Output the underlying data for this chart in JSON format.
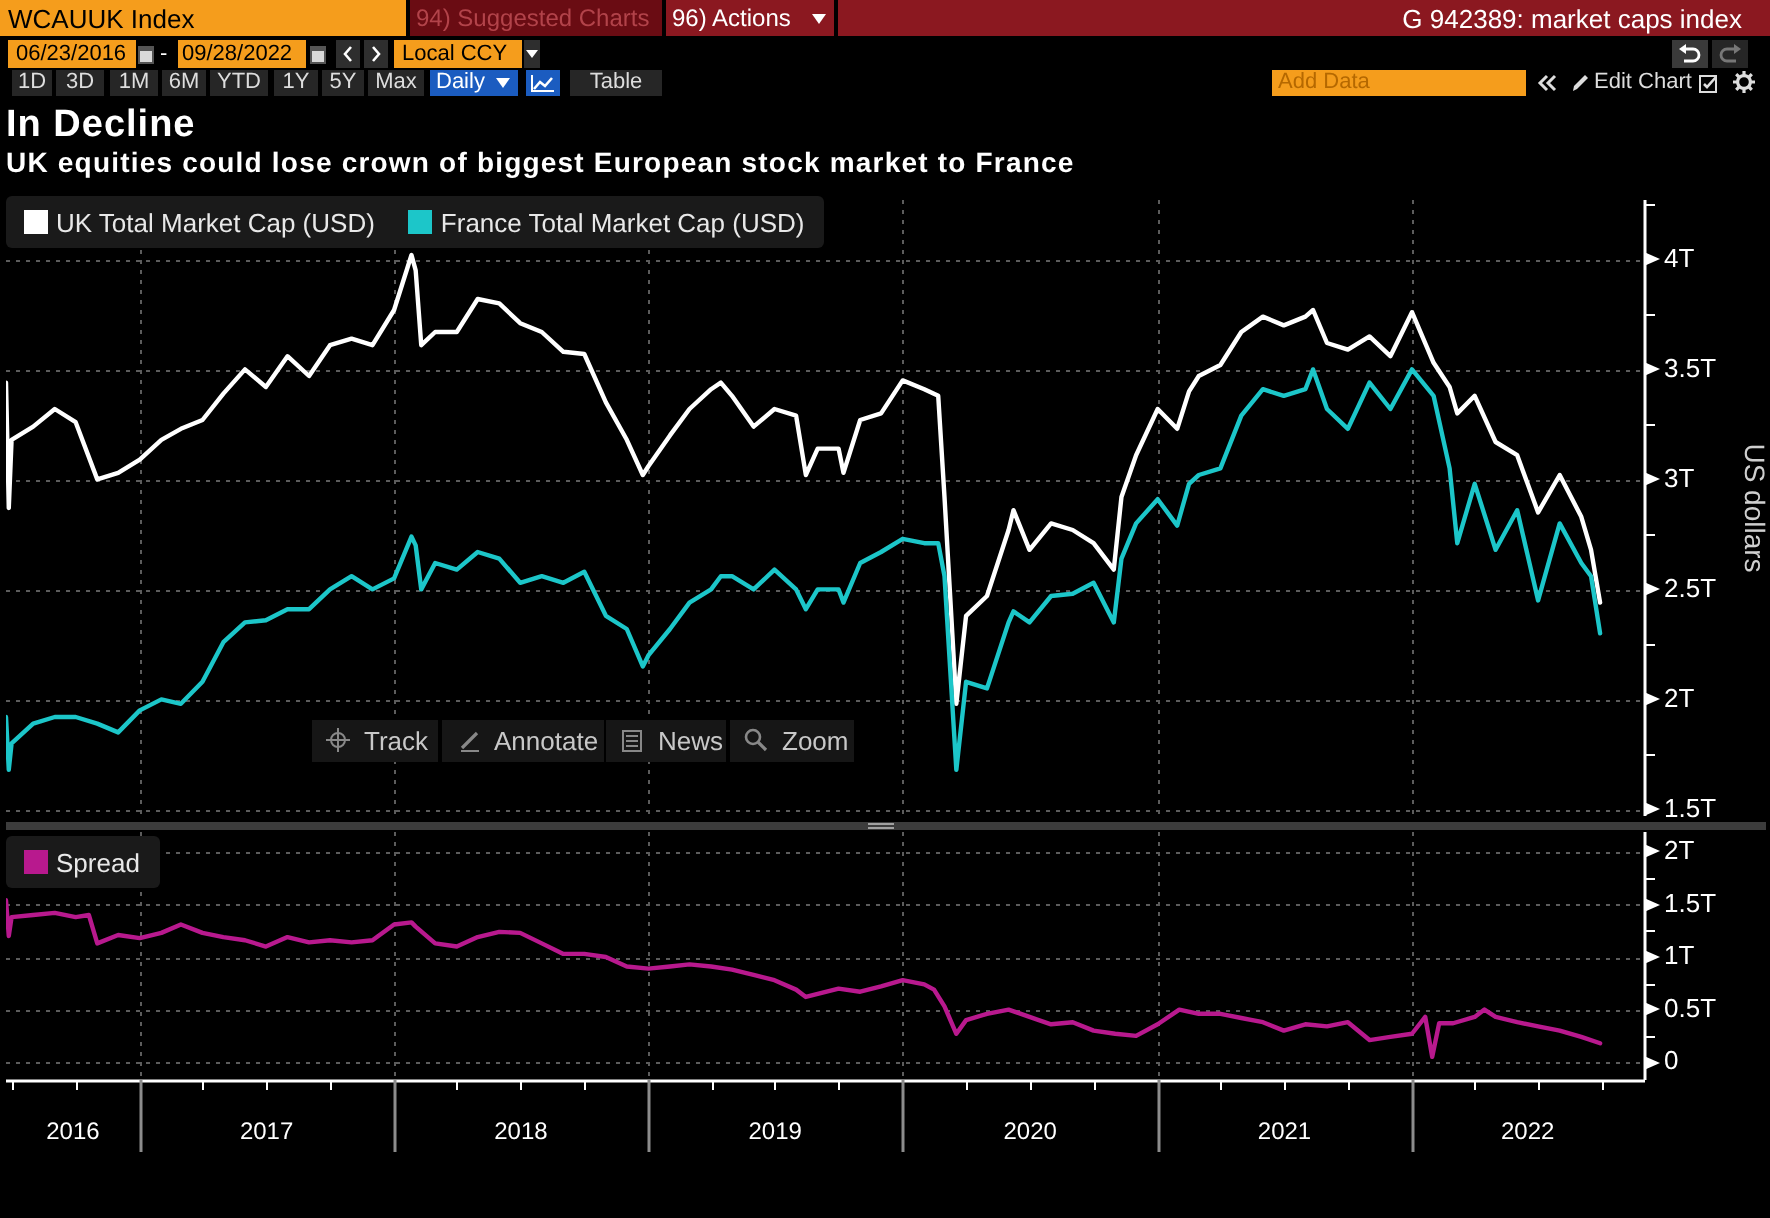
{
  "chart_data": [
    {
      "type": "line",
      "title": "In Decline",
      "subtitle": "UK equities could lose crown of biggest European stock market to France",
      "ylabel": "US dollars",
      "annotations": [
        "WCAUUK Index",
        "94) Suggested Charts",
        "96) Actions",
        "G 942389: market caps index",
        "06/23/2016",
        "-",
        "09/28/2022",
        "Local CCY",
        "1D",
        "3D",
        "1M",
        "6M",
        "YTD",
        "1Y",
        "5Y",
        "Max",
        "Daily",
        "Table",
        "Add Data",
        "Edit Chart",
        "Track",
        "Annotate",
        "News",
        "Zoom"
      ],
      "x": [
        "2016-06-23",
        "2016-06-27",
        "2016-07-01",
        "2016-08-01",
        "2016-09-01",
        "2016-10-01",
        "2016-11-01",
        "2016-12-01",
        "2017-01-01",
        "2017-02-01",
        "2017-03-01",
        "2017-04-01",
        "2017-05-01",
        "2017-06-01",
        "2017-07-01",
        "2017-08-01",
        "2017-09-01",
        "2017-10-01",
        "2017-11-01",
        "2017-12-01",
        "2018-01-01",
        "2018-01-26",
        "2018-02-01",
        "2018-02-09",
        "2018-03-01",
        "2018-04-01",
        "2018-05-01",
        "2018-06-01",
        "2018-07-01",
        "2018-08-01",
        "2018-09-01",
        "2018-10-01",
        "2018-11-01",
        "2018-12-01",
        "2018-12-24",
        "2019-01-01",
        "2019-02-01",
        "2019-03-01",
        "2019-04-01",
        "2019-04-15",
        "2019-05-01",
        "2019-06-01",
        "2019-07-01",
        "2019-08-01",
        "2019-08-15",
        "2019-09-01",
        "2019-10-01",
        "2019-10-08",
        "2019-11-01",
        "2019-12-01",
        "2020-01-01",
        "2020-02-01",
        "2020-02-21",
        "2020-03-01",
        "2020-03-18",
        "2020-04-01",
        "2020-05-01",
        "2020-06-01",
        "2020-06-08",
        "2020-07-01",
        "2020-08-01",
        "2020-09-01",
        "2020-10-01",
        "2020-10-30",
        "2020-11-10",
        "2020-12-01",
        "2021-01-01",
        "2021-01-29",
        "2021-02-15",
        "2021-03-01",
        "2021-04-01",
        "2021-05-01",
        "2021-06-01",
        "2021-07-01",
        "2021-08-01",
        "2021-08-12",
        "2021-09-01",
        "2021-10-01",
        "2021-11-01",
        "2021-12-01",
        "2022-01-01",
        "2022-02-01",
        "2022-02-24",
        "2022-03-07",
        "2022-04-01",
        "2022-05-01",
        "2022-06-01",
        "2022-07-01",
        "2022-08-01",
        "2022-09-01",
        "2022-09-15",
        "2022-09-28"
      ],
      "series": [
        {
          "name": "UK Total Market Cap (USD)",
          "color": "#ffffff",
          "values": [
            3.44,
            2.87,
            3.18,
            3.24,
            3.32,
            3.26,
            3.0,
            3.03,
            3.09,
            3.18,
            3.23,
            3.27,
            3.39,
            3.5,
            3.42,
            3.56,
            3.47,
            3.61,
            3.64,
            3.61,
            3.77,
            4.02,
            3.95,
            3.61,
            3.67,
            3.67,
            3.82,
            3.8,
            3.71,
            3.67,
            3.58,
            3.57,
            3.35,
            3.18,
            3.02,
            3.06,
            3.2,
            3.32,
            3.41,
            3.44,
            3.38,
            3.24,
            3.32,
            3.29,
            3.02,
            3.14,
            3.14,
            3.03,
            3.27,
            3.3,
            3.45,
            3.41,
            3.38,
            2.92,
            1.98,
            2.38,
            2.47,
            2.77,
            2.86,
            2.68,
            2.8,
            2.77,
            2.71,
            2.59,
            2.92,
            3.11,
            3.32,
            3.23,
            3.4,
            3.47,
            3.52,
            3.67,
            3.74,
            3.7,
            3.74,
            3.77,
            3.62,
            3.59,
            3.65,
            3.56,
            3.76,
            3.53,
            3.42,
            3.3,
            3.38,
            3.17,
            3.11,
            2.85,
            3.02,
            2.83,
            2.68,
            2.44
          ]
        },
        {
          "name": "France Total Market Cap (USD)",
          "color": "#1cc6c9",
          "values": [
            1.92,
            1.68,
            1.8,
            1.89,
            1.92,
            1.92,
            1.89,
            1.85,
            1.95,
            2.0,
            1.98,
            2.08,
            2.26,
            2.35,
            2.36,
            2.41,
            2.41,
            2.5,
            2.56,
            2.5,
            2.55,
            2.74,
            2.7,
            2.5,
            2.62,
            2.59,
            2.67,
            2.64,
            2.53,
            2.56,
            2.53,
            2.58,
            2.38,
            2.32,
            2.15,
            2.2,
            2.32,
            2.44,
            2.5,
            2.56,
            2.56,
            2.5,
            2.59,
            2.5,
            2.41,
            2.5,
            2.5,
            2.44,
            2.62,
            2.67,
            2.73,
            2.71,
            2.71,
            2.56,
            1.68,
            2.08,
            2.05,
            2.35,
            2.4,
            2.35,
            2.47,
            2.48,
            2.53,
            2.35,
            2.64,
            2.8,
            2.91,
            2.79,
            2.98,
            3.02,
            3.05,
            3.29,
            3.41,
            3.38,
            3.41,
            3.5,
            3.32,
            3.23,
            3.44,
            3.32,
            3.5,
            3.38,
            3.05,
            2.71,
            2.98,
            2.68,
            2.86,
            2.45,
            2.8,
            2.62,
            2.56,
            2.3
          ]
        }
      ],
      "xlim": [
        "2016-06-23",
        "2022-11-30"
      ],
      "xticks": [
        {
          "value": "2017-01-01",
          "label": null
        },
        {
          "value": "2018-01-01",
          "label": null
        },
        {
          "value": "2019-01-01",
          "label": null
        },
        {
          "value": "2020-01-01",
          "label": null
        },
        {
          "value": "2021-01-01",
          "label": null
        },
        {
          "value": "2022-01-01",
          "label": null
        }
      ],
      "ylim": [
        1.47,
        4.27
      ],
      "yticks": [
        {
          "value": 1.5,
          "label": "1.5T"
        },
        {
          "value": 1.75,
          "label": null
        },
        {
          "value": 2,
          "label": "2T"
        },
        {
          "value": 2.25,
          "label": null
        },
        {
          "value": 2.5,
          "label": "2.5T"
        },
        {
          "value": 2.75,
          "label": null
        },
        {
          "value": 3,
          "label": "3T"
        },
        {
          "value": 3.25,
          "label": null
        },
        {
          "value": 3.5,
          "label": "3.5T"
        },
        {
          "value": 3.75,
          "label": null
        },
        {
          "value": 4,
          "label": "4T"
        },
        {
          "value": 4.25,
          "label": null
        }
      ],
      "tick_labels": "y",
      "grid": true,
      "legend": "top left"
    },
    {
      "type": "line",
      "x": [
        "2016-06-23",
        "2016-06-27",
        "2016-07-01",
        "2016-08-01",
        "2016-09-01",
        "2016-10-01",
        "2016-10-20",
        "2016-11-01",
        "2016-12-01",
        "2017-01-01",
        "2017-02-01",
        "2017-03-01",
        "2017-04-01",
        "2017-05-01",
        "2017-06-01",
        "2017-07-01",
        "2017-08-01",
        "2017-09-01",
        "2017-10-01",
        "2017-11-01",
        "2017-12-01",
        "2018-01-01",
        "2018-01-26",
        "2018-02-01",
        "2018-03-01",
        "2018-04-01",
        "2018-05-01",
        "2018-06-01",
        "2018-07-01",
        "2018-08-01",
        "2018-09-01",
        "2018-10-01",
        "2018-11-01",
        "2018-12-01",
        "2019-01-01",
        "2019-02-01",
        "2019-03-01",
        "2019-04-01",
        "2019-05-01",
        "2019-06-01",
        "2019-07-01",
        "2019-08-01",
        "2019-08-15",
        "2019-09-01",
        "2019-10-01",
        "2019-11-01",
        "2019-12-01",
        "2020-01-01",
        "2020-02-01",
        "2020-02-15",
        "2020-03-01",
        "2020-03-18",
        "2020-04-01",
        "2020-05-01",
        "2020-06-01",
        "2020-07-01",
        "2020-08-01",
        "2020-09-01",
        "2020-10-01",
        "2020-11-01",
        "2020-12-01",
        "2021-01-01",
        "2021-02-01",
        "2021-03-01",
        "2021-04-01",
        "2021-05-01",
        "2021-06-01",
        "2021-07-01",
        "2021-08-01",
        "2021-09-01",
        "2021-10-01",
        "2021-11-01",
        "2021-12-01",
        "2022-01-01",
        "2022-01-20",
        "2022-01-30",
        "2022-02-09",
        "2022-03-01",
        "2022-04-01",
        "2022-04-15",
        "2022-05-01",
        "2022-06-01",
        "2022-07-01",
        "2022-08-01",
        "2022-09-01",
        "2022-09-28"
      ],
      "series": [
        {
          "name": "Spread",
          "color": "#b8198e",
          "values": [
            1.54,
            1.2,
            1.38,
            1.4,
            1.42,
            1.38,
            1.4,
            1.13,
            1.21,
            1.18,
            1.23,
            1.31,
            1.23,
            1.19,
            1.16,
            1.1,
            1.19,
            1.14,
            1.16,
            1.14,
            1.16,
            1.31,
            1.33,
            1.29,
            1.13,
            1.1,
            1.19,
            1.24,
            1.23,
            1.13,
            1.03,
            1.03,
            1.0,
            0.91,
            0.89,
            0.91,
            0.93,
            0.91,
            0.88,
            0.83,
            0.78,
            0.69,
            0.62,
            0.65,
            0.7,
            0.67,
            0.72,
            0.78,
            0.74,
            0.69,
            0.53,
            0.27,
            0.4,
            0.46,
            0.5,
            0.43,
            0.36,
            0.38,
            0.3,
            0.27,
            0.25,
            0.36,
            0.5,
            0.46,
            0.46,
            0.42,
            0.38,
            0.3,
            0.36,
            0.34,
            0.38,
            0.21,
            0.24,
            0.27,
            0.43,
            0.05,
            0.37,
            0.37,
            0.43,
            0.5,
            0.43,
            0.38,
            0.34,
            0.3,
            0.24,
            0.18
          ]
        }
      ],
      "xlim": [
        "2016-06-23",
        "2022-11-30"
      ],
      "xticks": [
        {
          "value": "2016-07-01",
          "label": null
        },
        {
          "value": "2016-09-27",
          "label": "2016"
        },
        {
          "value": "2016-10-01",
          "label": null
        },
        {
          "value": "2017-01-01",
          "label": null
        },
        {
          "value": "2017-04-01",
          "label": null
        },
        {
          "value": "2017-07-01",
          "label": null
        },
        {
          "value": "2017-07-02",
          "label": "2017"
        },
        {
          "value": "2017-10-01",
          "label": null
        },
        {
          "value": "2018-01-01",
          "label": null
        },
        {
          "value": "2018-04-01",
          "label": null
        },
        {
          "value": "2018-07-01",
          "label": null
        },
        {
          "value": "2018-07-02",
          "label": "2018"
        },
        {
          "value": "2018-10-01",
          "label": null
        },
        {
          "value": "2019-01-01",
          "label": null
        },
        {
          "value": "2019-04-01",
          "label": null
        },
        {
          "value": "2019-07-01",
          "label": null
        },
        {
          "value": "2019-07-02",
          "label": "2019"
        },
        {
          "value": "2019-10-01",
          "label": null
        },
        {
          "value": "2020-01-01",
          "label": null
        },
        {
          "value": "2020-04-01",
          "label": null
        },
        {
          "value": "2020-07-01",
          "label": null
        },
        {
          "value": "2020-07-02",
          "label": "2020"
        },
        {
          "value": "2020-10-01",
          "label": null
        },
        {
          "value": "2021-01-01",
          "label": null
        },
        {
          "value": "2021-04-01",
          "label": null
        },
        {
          "value": "2021-07-01",
          "label": null
        },
        {
          "value": "2021-07-02",
          "label": "2021"
        },
        {
          "value": "2021-10-01",
          "label": null
        },
        {
          "value": "2022-01-01",
          "label": null
        },
        {
          "value": "2022-04-01",
          "label": null
        },
        {
          "value": "2022-06-16",
          "label": "2022"
        },
        {
          "value": "2022-07-01",
          "label": null
        },
        {
          "value": "2022-10-01",
          "label": null
        }
      ],
      "ylim": [
        -0.17,
        2.19
      ],
      "yticks": [
        0,
        {
          "value": 0.25,
          "label": null
        },
        {
          "value": 0.5,
          "label": "0.5T"
        },
        {
          "value": 0.75,
          "label": null
        },
        {
          "value": 1,
          "label": "1T"
        },
        {
          "value": 1.25,
          "label": null
        },
        {
          "value": 1.5,
          "label": "1.5T"
        },
        {
          "value": 1.75,
          "label": null
        },
        {
          "value": 2,
          "label": "2T"
        }
      ],
      "grid": true,
      "legend": "top left"
    }
  ]
}
